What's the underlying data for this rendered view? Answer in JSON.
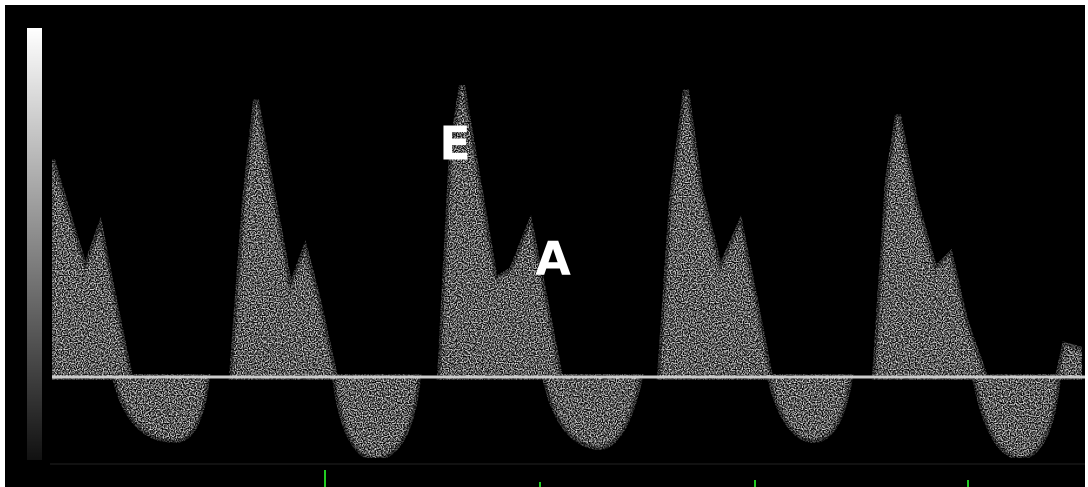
{
  "annotations": {
    "e_wave": "E",
    "a_wave": "A"
  }
}
